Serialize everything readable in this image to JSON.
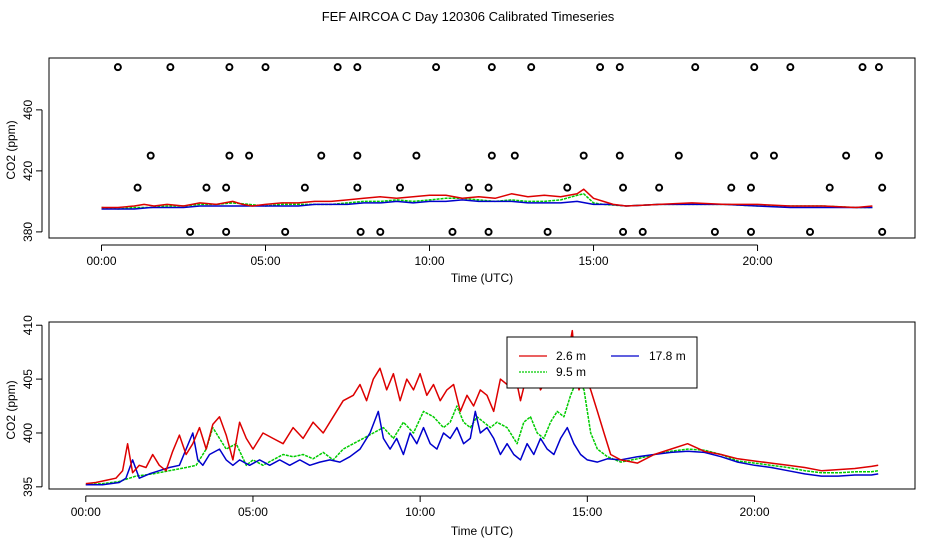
{
  "page": {
    "title": "FEF AIRCOA C  Day 120306  Calibrated Timeseries"
  },
  "chart_data": [
    {
      "type": "line",
      "id": "top",
      "title": "FEF AIRCOA C  Day 120306  Calibrated Timeseries",
      "xlabel": "Time (UTC)",
      "ylabel": "CO2 (ppm)",
      "xlim": [
        -1.6,
        24.8
      ],
      "ylim": [
        376,
        494
      ],
      "xticks": [
        0,
        5,
        10,
        15,
        20
      ],
      "xtick_labels": [
        "00:00",
        "05:00",
        "10:00",
        "15:00",
        "20:00"
      ],
      "yticks": [
        380,
        420,
        460
      ],
      "ytick_labels": [
        "380",
        "420",
        "460"
      ],
      "grid": false,
      "series": [
        {
          "name": "2.6 m",
          "color": "#dd0000",
          "x": [
            0,
            0.5,
            1,
            1.3,
            1.6,
            2,
            2.5,
            3,
            3.5,
            4,
            4.3,
            4.6,
            5,
            5.5,
            6,
            6.5,
            7,
            7.5,
            8,
            8.5,
            9,
            9.5,
            10,
            10.5,
            11,
            11.5,
            12,
            12.5,
            13,
            13.5,
            14,
            14.5,
            14.7,
            15,
            15.3,
            15.6,
            16,
            17,
            18,
            19,
            20,
            21,
            22,
            23,
            23.5
          ],
          "y": [
            396,
            396,
            397,
            398,
            397,
            398,
            397,
            399,
            398,
            400,
            398,
            397,
            398,
            399,
            399,
            400,
            400,
            401,
            402,
            403,
            402,
            403,
            404,
            404,
            402,
            403,
            402,
            405,
            403,
            404,
            403,
            405,
            408,
            402,
            400,
            398,
            397,
            398,
            399,
            398,
            398,
            397,
            397,
            396,
            397
          ]
        },
        {
          "name": "9.5 m",
          "color": "#00cc00",
          "x": [
            0,
            0.5,
            1,
            1.5,
            2,
            2.5,
            3,
            3.5,
            4,
            4.5,
            5,
            5.5,
            6,
            6.5,
            7,
            7.5,
            8,
            8.5,
            9,
            9.5,
            10,
            10.5,
            11,
            11.5,
            12,
            12.5,
            13,
            13.5,
            14,
            14.5,
            14.7,
            15,
            15.3,
            16,
            17,
            18,
            19,
            20,
            21,
            22,
            23,
            23.5
          ],
          "y": [
            396,
            395,
            396,
            396,
            397,
            397,
            398,
            398,
            399,
            398,
            397,
            398,
            398,
            398,
            398,
            399,
            400,
            400,
            401,
            400,
            401,
            402,
            402,
            401,
            400,
            401,
            400,
            400,
            401,
            404,
            405,
            399,
            398,
            397,
            398,
            398,
            398,
            397,
            397,
            397,
            396,
            396
          ]
        },
        {
          "name": "17.8 m",
          "color": "#0000cc",
          "x": [
            0,
            0.5,
            1,
            1.5,
            2,
            2.5,
            3,
            3.5,
            4,
            4.5,
            5,
            5.5,
            6,
            6.5,
            7,
            7.5,
            8,
            8.5,
            9,
            9.5,
            10,
            10.5,
            11,
            11.5,
            12,
            12.5,
            13,
            13.5,
            14,
            14.5,
            15,
            15.5,
            16,
            17,
            18,
            19,
            20,
            21,
            22,
            23,
            23.5
          ],
          "y": [
            395,
            395,
            395,
            396,
            396,
            396,
            397,
            397,
            397,
            397,
            397,
            397,
            397,
            398,
            398,
            398,
            399,
            399,
            400,
            399,
            400,
            400,
            401,
            400,
            400,
            400,
            399,
            399,
            399,
            400,
            398,
            398,
            397,
            398,
            398,
            398,
            397,
            396,
            396,
            396,
            396
          ]
        }
      ],
      "markers": {
        "symbol": "open circle",
        "color": "#000000",
        "x": [
          0.5,
          2.1,
          3.9,
          5.0,
          7.2,
          7.8,
          10.2,
          11.9,
          13.1,
          15.2,
          15.8,
          18.1,
          19.9,
          21.0,
          23.2,
          23.7,
          1.5,
          3.9,
          4.5,
          6.7,
          7.8,
          9.6,
          11.9,
          12.6,
          14.7,
          15.8,
          17.6,
          19.9,
          20.5,
          22.7,
          23.7,
          1.1,
          3.2,
          3.8,
          6.2,
          7.8,
          9.1,
          11.2,
          11.8,
          14.2,
          15.9,
          17.0,
          19.2,
          19.8,
          22.2,
          23.8,
          2.7,
          3.8,
          5.6,
          7.9,
          8.5,
          10.7,
          11.8,
          13.6,
          15.9,
          16.5,
          18.7,
          19.8,
          21.6,
          23.8
        ],
        "y": [
          488,
          488,
          488,
          488,
          488,
          488,
          488,
          488,
          488,
          488,
          488,
          488,
          488,
          488,
          488,
          488,
          430,
          430,
          430,
          430,
          430,
          430,
          430,
          430,
          430,
          430,
          430,
          430,
          430,
          430,
          430,
          409,
          409,
          409,
          409,
          409,
          409,
          409,
          409,
          409,
          409,
          409,
          409,
          409,
          409,
          409,
          380,
          380,
          380,
          380,
          380,
          380,
          380,
          380,
          380,
          380,
          380,
          380,
          380,
          380
        ]
      }
    },
    {
      "type": "line",
      "id": "bottom",
      "title": "",
      "xlabel": "Time (UTC)",
      "ylabel": "CO2 (ppm)",
      "xlim": [
        -1.1,
        24.8
      ],
      "ylim": [
        394.8,
        410.3
      ],
      "xticks": [
        0,
        5,
        10,
        15,
        20
      ],
      "xtick_labels": [
        "00:00",
        "05:00",
        "10:00",
        "15:00",
        "20:00"
      ],
      "yticks": [
        395,
        400,
        405,
        410
      ],
      "ytick_labels": [
        "395",
        "400",
        "405",
        "410"
      ],
      "grid": false,
      "legend": {
        "position": "top-center",
        "entries": [
          "2.6 m",
          "17.8 m",
          "9.5 m"
        ]
      },
      "series": [
        {
          "name": "2.6 m",
          "color": "#dd0000",
          "x": [
            0,
            0.3,
            0.6,
            0.9,
            1.1,
            1.25,
            1.4,
            1.6,
            1.8,
            2.0,
            2.2,
            2.4,
            2.6,
            2.8,
            3.0,
            3.2,
            3.4,
            3.6,
            3.8,
            4.0,
            4.2,
            4.4,
            4.6,
            4.8,
            5.0,
            5.3,
            5.6,
            5.9,
            6.2,
            6.5,
            6.8,
            7.1,
            7.4,
            7.7,
            8.0,
            8.2,
            8.4,
            8.6,
            8.8,
            9.0,
            9.2,
            9.4,
            9.6,
            9.8,
            10.0,
            10.2,
            10.4,
            10.6,
            10.8,
            11.0,
            11.2,
            11.4,
            11.6,
            11.8,
            12.0,
            12.2,
            12.4,
            12.6,
            12.8,
            13.0,
            13.2,
            13.4,
            13.6,
            13.8,
            14.0,
            14.2,
            14.4,
            14.55,
            14.65,
            14.75,
            14.9,
            15.1,
            15.3,
            15.5,
            15.7,
            16.0,
            16.5,
            17.0,
            17.5,
            18.0,
            18.5,
            19.0,
            19.5,
            20.0,
            20.5,
            21.0,
            21.5,
            22.0,
            22.5,
            23.0,
            23.5,
            23.7
          ],
          "y": [
            395.3,
            395.4,
            395.6,
            395.8,
            396.5,
            399.0,
            396.3,
            397.0,
            396.8,
            398.0,
            397.0,
            396.5,
            398.3,
            399.8,
            398.0,
            399.0,
            400.5,
            398.5,
            400.8,
            401.5,
            399.8,
            397.5,
            401.0,
            399.5,
            398.5,
            400.0,
            399.5,
            399.0,
            400.5,
            399.5,
            401.0,
            400.0,
            401.5,
            403.0,
            403.5,
            404.5,
            403.0,
            405.0,
            406.0,
            404.0,
            405.5,
            403.0,
            405.0,
            404.0,
            405.5,
            403.5,
            404.5,
            403.0,
            404.0,
            404.5,
            402.0,
            403.5,
            402.5,
            404.0,
            403.5,
            402.0,
            405.0,
            404.5,
            406.0,
            403.0,
            405.5,
            406.5,
            404.0,
            405.0,
            404.5,
            405.5,
            407.0,
            409.5,
            406.0,
            404.0,
            405.5,
            404.0,
            402.0,
            400.0,
            398.0,
            397.5,
            397.2,
            398.0,
            398.5,
            399.0,
            398.3,
            398.0,
            397.6,
            397.4,
            397.2,
            397.0,
            396.8,
            396.5,
            396.6,
            396.7,
            396.9,
            397.0
          ]
        },
        {
          "name": "9.5 m",
          "color": "#00cc00",
          "x": [
            0,
            0.5,
            1.0,
            1.5,
            2.0,
            2.5,
            3.0,
            3.3,
            3.6,
            3.8,
            4.0,
            4.2,
            4.5,
            4.8,
            5.0,
            5.3,
            5.6,
            5.9,
            6.2,
            6.5,
            6.8,
            7.1,
            7.4,
            7.7,
            8.0,
            8.3,
            8.6,
            8.9,
            9.2,
            9.5,
            9.8,
            10.1,
            10.4,
            10.7,
            10.9,
            11.1,
            11.3,
            11.5,
            11.7,
            11.9,
            12.1,
            12.3,
            12.6,
            12.9,
            13.1,
            13.3,
            13.5,
            13.7,
            13.9,
            14.1,
            14.3,
            14.5,
            14.7,
            14.9,
            15.1,
            15.3,
            15.6,
            16.0,
            16.5,
            17.0,
            17.5,
            18.0,
            18.5,
            19.0,
            19.5,
            20.0,
            20.5,
            21.0,
            21.5,
            22.0,
            22.5,
            23.0,
            23.5,
            23.7
          ],
          "y": [
            395.2,
            395.3,
            395.5,
            396.0,
            396.2,
            396.5,
            396.8,
            397.0,
            398.5,
            400.5,
            399.5,
            398.5,
            399.0,
            397.0,
            397.5,
            397.0,
            397.5,
            398.0,
            397.8,
            398.0,
            397.6,
            398.2,
            397.5,
            398.5,
            399.0,
            399.5,
            400.0,
            400.5,
            399.5,
            401.0,
            400.0,
            402.0,
            401.5,
            400.5,
            401.0,
            402.5,
            401.0,
            400.5,
            401.5,
            401.0,
            400.5,
            401.0,
            400.5,
            399.0,
            401.0,
            401.5,
            400.0,
            399.5,
            401.0,
            402.0,
            401.5,
            403.5,
            405.0,
            404.0,
            400.0,
            398.5,
            397.8,
            397.3,
            397.6,
            398.0,
            398.3,
            398.5,
            398.4,
            398.0,
            397.4,
            397.2,
            397.0,
            396.8,
            396.5,
            396.3,
            396.3,
            396.4,
            396.4,
            396.5
          ]
        },
        {
          "name": "17.8 m",
          "color": "#0000cc",
          "x": [
            0,
            0.5,
            1.0,
            1.2,
            1.4,
            1.6,
            1.9,
            2.2,
            2.5,
            2.8,
            3.0,
            3.2,
            3.35,
            3.5,
            3.7,
            4.0,
            4.2,
            4.4,
            4.6,
            4.9,
            5.2,
            5.5,
            5.8,
            6.1,
            6.4,
            6.7,
            7.0,
            7.3,
            7.6,
            7.9,
            8.2,
            8.5,
            8.75,
            8.9,
            9.1,
            9.3,
            9.5,
            9.7,
            9.9,
            10.1,
            10.3,
            10.5,
            10.7,
            10.9,
            11.1,
            11.3,
            11.5,
            11.65,
            11.8,
            12.0,
            12.2,
            12.4,
            12.6,
            12.8,
            13.0,
            13.2,
            13.4,
            13.6,
            13.8,
            14.0,
            14.2,
            14.4,
            14.6,
            14.8,
            15.0,
            15.3,
            15.6,
            16.0,
            16.5,
            17.0,
            17.5,
            18.0,
            18.5,
            19.0,
            19.5,
            20.0,
            20.5,
            21.0,
            21.5,
            22.0,
            22.5,
            23.0,
            23.5,
            23.7
          ],
          "y": [
            395.2,
            395.2,
            395.4,
            395.8,
            397.5,
            395.8,
            396.2,
            396.5,
            396.8,
            397.0,
            398.5,
            400.0,
            397.5,
            397.0,
            398.0,
            398.5,
            397.5,
            397.0,
            397.5,
            397.0,
            397.5,
            397.0,
            397.5,
            397.0,
            397.5,
            397.0,
            397.3,
            397.5,
            397.3,
            397.8,
            398.5,
            400.0,
            402.0,
            399.5,
            398.5,
            399.5,
            398.0,
            400.0,
            399.0,
            400.5,
            399.0,
            398.5,
            400.0,
            399.5,
            400.5,
            399.0,
            399.5,
            402.0,
            400.0,
            400.5,
            399.5,
            398.0,
            399.0,
            398.0,
            397.5,
            399.0,
            398.0,
            399.5,
            398.5,
            398.0,
            399.5,
            400.5,
            399.0,
            398.0,
            397.5,
            397.3,
            397.6,
            397.5,
            397.8,
            398.0,
            398.2,
            398.3,
            398.2,
            397.8,
            397.3,
            397.0,
            396.8,
            396.5,
            396.2,
            396.0,
            396.0,
            396.1,
            396.1,
            396.2
          ]
        }
      ]
    }
  ]
}
